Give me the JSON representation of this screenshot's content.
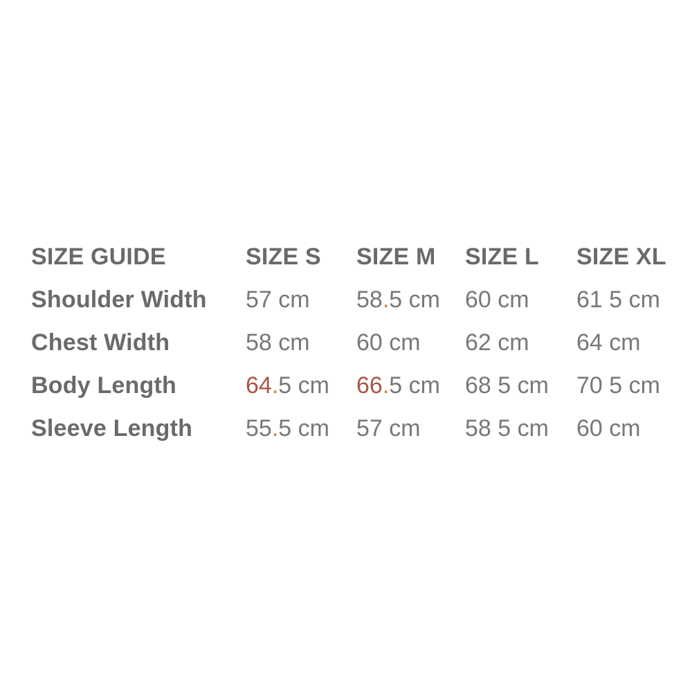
{
  "colors": {
    "label": "#6a6a6a",
    "value": "#787878",
    "red": "#a75847",
    "orange": "#c5823f"
  },
  "size_table": {
    "header": {
      "title": "SIZE GUIDE",
      "columns": [
        "SIZE S",
        "SIZE M",
        "SIZE L",
        "SIZE XL"
      ]
    },
    "rows": [
      {
        "label": "Shoulder Width",
        "cells": [
          {
            "parts": [
              {
                "t": "57 cm"
              }
            ]
          },
          {
            "parts": [
              {
                "t": "58"
              },
              {
                "t": ".",
                "c": "orange"
              },
              {
                "t": "5 cm"
              }
            ]
          },
          {
            "parts": [
              {
                "t": "60 cm"
              }
            ]
          },
          {
            "parts": [
              {
                "t": "61 5 cm"
              }
            ]
          }
        ]
      },
      {
        "label": "Chest Width",
        "cells": [
          {
            "parts": [
              {
                "t": "58 cm"
              }
            ]
          },
          {
            "parts": [
              {
                "t": "60 cm"
              }
            ]
          },
          {
            "parts": [
              {
                "t": "62 cm"
              }
            ]
          },
          {
            "parts": [
              {
                "t": "64 cm"
              }
            ]
          }
        ]
      },
      {
        "label": "Body Length",
        "cells": [
          {
            "parts": [
              {
                "t": "64",
                "c": "red"
              },
              {
                "t": ".",
                "c": "orange"
              },
              {
                "t": "5 cm"
              }
            ]
          },
          {
            "parts": [
              {
                "t": "66",
                "c": "red"
              },
              {
                "t": ".",
                "c": "orange"
              },
              {
                "t": "5 cm"
              }
            ]
          },
          {
            "parts": [
              {
                "t": "68 5 cm"
              }
            ]
          },
          {
            "parts": [
              {
                "t": "70 5 cm"
              }
            ]
          }
        ]
      },
      {
        "label": "Sleeve Length",
        "cells": [
          {
            "parts": [
              {
                "t": "55"
              },
              {
                "t": ".",
                "c": "orange"
              },
              {
                "t": "5 cm"
              }
            ]
          },
          {
            "parts": [
              {
                "t": "57 cm"
              }
            ]
          },
          {
            "parts": [
              {
                "t": "58 5 cm"
              }
            ]
          },
          {
            "parts": [
              {
                "t": "60 cm"
              }
            ]
          }
        ]
      }
    ]
  }
}
